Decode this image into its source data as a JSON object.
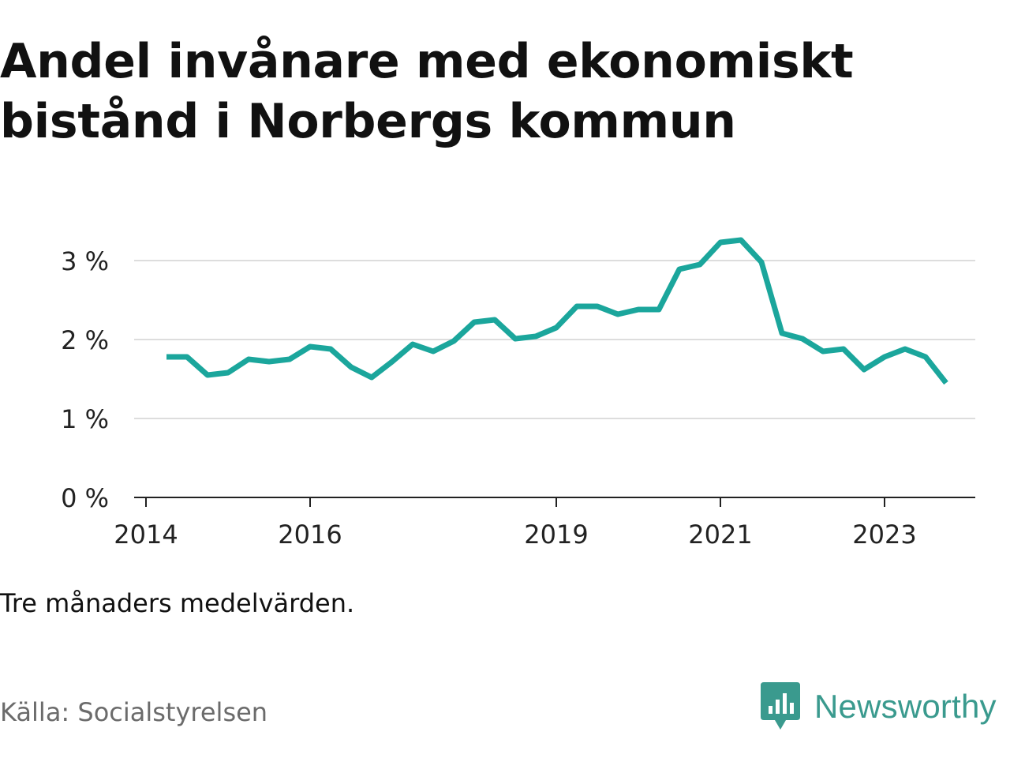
{
  "title": "Andel invånare med ekonomiskt bistånd i Norbergs kommun",
  "note": "Tre månaders medelvärden.",
  "source": "Källa: Socialstyrelsen",
  "brand": {
    "name": "Newsworthy",
    "icon": "newsworthy-logo-icon",
    "color": "#3a9a8e"
  },
  "colors": {
    "line": "#1ba69c",
    "grid": "#dddddd",
    "axis": "#222222"
  },
  "chart_data": {
    "type": "line",
    "title": "Andel invånare med ekonomiskt bistånd i Norbergs kommun",
    "xlabel": "",
    "ylabel": "",
    "y_ticks": [
      0,
      1,
      2,
      3
    ],
    "y_tick_labels": [
      "0 %",
      "1 %",
      "2 %",
      "3 %"
    ],
    "x_ticks": [
      2014,
      2016,
      2019,
      2021,
      2023
    ],
    "x_tick_labels": [
      "2014",
      "2016",
      "2019",
      "2021",
      "2023"
    ],
    "xlim": [
      2014,
      2024.25
    ],
    "ylim": [
      0,
      3.3
    ],
    "grid": true,
    "series": [
      {
        "x": [
          2014.25,
          2014.5,
          2014.75,
          2015.0,
          2015.25,
          2015.5,
          2015.75,
          2016.0,
          2016.25,
          2016.5,
          2016.75,
          2017.0,
          2017.25,
          2017.5,
          2017.75,
          2018.0,
          2018.25,
          2018.5,
          2018.75,
          2019.0,
          2019.25,
          2019.5,
          2019.75,
          2020.0,
          2020.25,
          2020.5,
          2020.75,
          2021.0,
          2021.25,
          2021.5,
          2021.75,
          2022.0,
          2022.25,
          2022.5,
          2022.75,
          2023.0,
          2023.25,
          2023.5,
          2023.75
        ],
        "values": [
          1.78,
          1.78,
          1.55,
          1.58,
          1.75,
          1.72,
          1.75,
          1.91,
          1.88,
          1.65,
          1.52,
          1.72,
          1.94,
          1.85,
          1.98,
          2.22,
          2.25,
          2.01,
          2.04,
          2.15,
          2.42,
          2.42,
          2.32,
          2.38,
          2.38,
          2.89,
          2.95,
          3.23,
          3.26,
          2.98,
          2.08,
          2.01,
          1.85,
          1.88,
          1.62,
          1.78,
          1.88,
          1.78,
          1.45
        ]
      }
    ]
  }
}
